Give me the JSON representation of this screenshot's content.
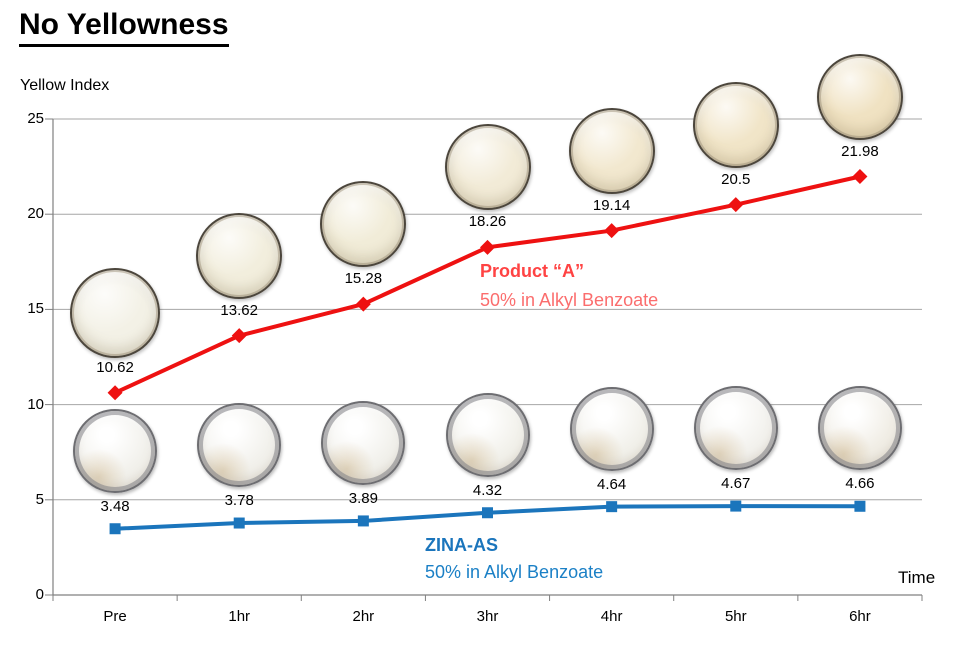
{
  "title": "No Yellowness",
  "y_axis_title": "Yellow Index",
  "x_axis_title": "Time",
  "chart_data": {
    "type": "line",
    "categories": [
      "Pre",
      "1hr",
      "2hr",
      "3hr",
      "4hr",
      "5hr",
      "6hr"
    ],
    "ylim": [
      0,
      25
    ],
    "y_ticks": [
      "0",
      "5",
      "10",
      "15",
      "20",
      "25"
    ],
    "grid": true,
    "legend_position": "inline-annotations",
    "series": [
      {
        "name": "Product “A”",
        "subtitle": "50% in Alkyl Benzoate",
        "color": "#ee1111",
        "name_color": "#ff4343",
        "subtitle_color": "#fb6d6d",
        "marker": "diamond",
        "values": [
          10.62,
          13.62,
          15.28,
          18.26,
          19.14,
          20.5,
          21.98
        ],
        "point_labels": [
          "10.62",
          "13.62",
          "15.28",
          "18.26",
          "19.14",
          "20.5",
          "21.98"
        ]
      },
      {
        "name": "ZINA-AS",
        "subtitle": "50% in Alkyl Benzoate",
        "color": "#1b75bc",
        "name_color": "#1b75bc",
        "subtitle_color": "#1b80c6",
        "marker": "square",
        "values": [
          3.48,
          3.78,
          3.89,
          4.32,
          4.64,
          4.67,
          4.66
        ],
        "point_labels": [
          "3.48",
          "3.78",
          "3.89",
          "4.32",
          "4.64",
          "4.67",
          "4.66"
        ]
      }
    ],
    "sample_photo_colors": {
      "product_a": [
        "#f3f1e6",
        "#f2eedd",
        "#f1ecd8",
        "#f2ebd7",
        "#f2e8cf",
        "#f1e5c8",
        "#f0e2c2"
      ],
      "zina_as": [
        "#f2f1ec",
        "#f2f1ec",
        "#f2f1ec",
        "#f2f1eb",
        "#f2f1eb",
        "#f3f2ee",
        "#f1eee6"
      ]
    },
    "grid_color": "#a6a6a6",
    "axis_color": "#808080"
  }
}
